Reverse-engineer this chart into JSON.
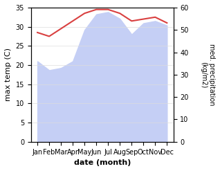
{
  "months": [
    "Jan",
    "Feb",
    "Mar",
    "Apr",
    "May",
    "Jun",
    "Jul",
    "Aug",
    "Sep",
    "Oct",
    "Nov",
    "Dec"
  ],
  "temp_line": [
    28.5,
    27.5,
    29.5,
    31.5,
    33.5,
    34.5,
    34.5,
    33.5,
    31.5,
    32.0,
    32.5,
    31.0
  ],
  "rain_fill": [
    36,
    32,
    33,
    36,
    50,
    57,
    58,
    55,
    48,
    53,
    54,
    52
  ],
  "temp_ylim": [
    0,
    35
  ],
  "rain_ylim": [
    0,
    60
  ],
  "temp_yticks": [
    0,
    5,
    10,
    15,
    20,
    25,
    30,
    35
  ],
  "rain_yticks": [
    0,
    10,
    20,
    30,
    40,
    50,
    60
  ],
  "fill_color": "#c5cff5",
  "line_color": "#d94040",
  "fill_alpha": 1.0,
  "ylabel_left": "max temp (C)",
  "ylabel_right": "med. precipitation\n(kg/m2)",
  "xlabel": "date (month)",
  "bg_color": "#ffffff"
}
